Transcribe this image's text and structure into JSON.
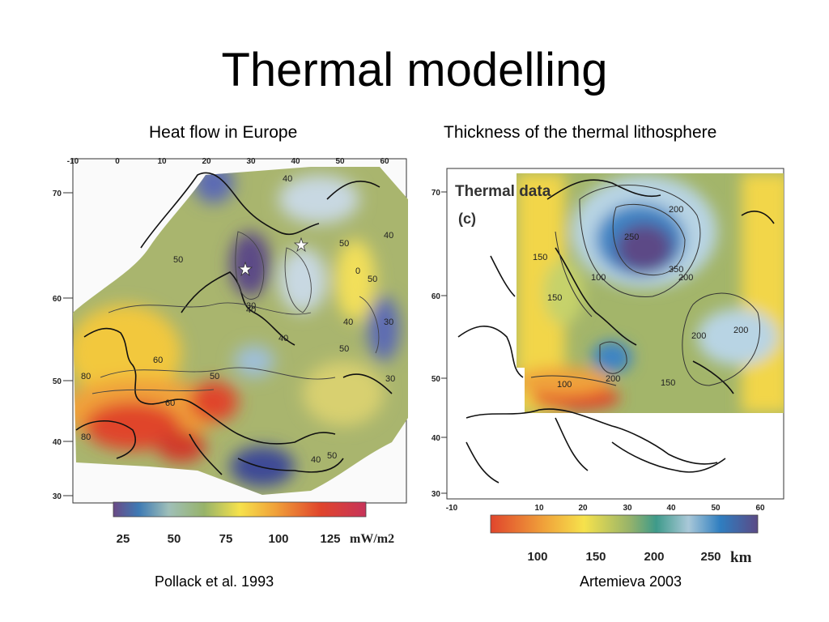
{
  "slide": {
    "title": "Thermal modelling"
  },
  "left_panel": {
    "caption": "Heat flow in Europe",
    "citation": "Pollack et al. 1993",
    "lon_ticks": [
      "-10",
      "0",
      "10",
      "20",
      "30",
      "40",
      "50",
      "60"
    ],
    "lat_ticks": [
      "70",
      "60",
      "50",
      "40",
      "30"
    ],
    "contour_labels": [
      "40",
      "50",
      "50",
      "0",
      "40",
      "50",
      "30",
      "40",
      "50",
      "40",
      "30",
      "80",
      "60",
      "60",
      "80",
      "50",
      "40",
      "30",
      "40",
      "50"
    ],
    "scale": {
      "ticks": [
        "25",
        "50",
        "75",
        "100",
        "125"
      ],
      "unit": "mW/m2",
      "colors": [
        "#6a4a86",
        "#3e7ab4",
        "#9fbfb8",
        "#97b36a",
        "#f6e24c",
        "#f0a23a",
        "#e0452c",
        "#c7345a"
      ]
    }
  },
  "right_panel": {
    "caption": "Thickness of the thermal lithosphere",
    "citation": "Artemieva 2003",
    "map_label": "Thermal data",
    "panel_letter": "(c)",
    "lon_ticks": [
      "-10",
      "10",
      "20",
      "30",
      "40",
      "50",
      "60"
    ],
    "lat_ticks": [
      "70",
      "60",
      "50",
      "40",
      "30"
    ],
    "contour_labels": [
      "200",
      "250",
      "350",
      "200",
      "150",
      "150",
      "100",
      "200",
      "200",
      "150",
      "100",
      "200"
    ],
    "scale": {
      "ticks": [
        "100",
        "150",
        "200",
        "250"
      ],
      "unit": "km",
      "colors": [
        "#e0452c",
        "#f0a23a",
        "#f6e24c",
        "#97b36a",
        "#3e9a8a",
        "#a9c8d8",
        "#2f7ec0",
        "#5b4a86"
      ]
    }
  }
}
